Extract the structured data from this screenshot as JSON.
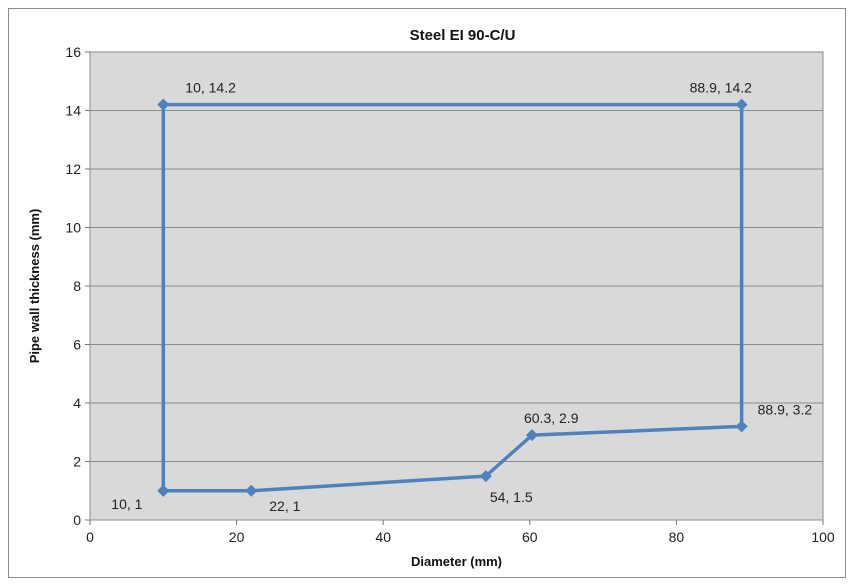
{
  "chart_data": {
    "type": "line",
    "title": "Steel EI 90-C/U",
    "xlabel": "Diameter (mm)",
    "ylabel": "Pipe wall thickness  (mm)",
    "xlim": [
      0,
      100
    ],
    "ylim": [
      0,
      16
    ],
    "x_ticks": [
      0,
      20,
      40,
      60,
      80,
      100
    ],
    "y_ticks": [
      0,
      2,
      4,
      6,
      8,
      10,
      12,
      14,
      16
    ],
    "grid": true,
    "legend": "none",
    "series": [
      {
        "color": "#4f81bd",
        "points": [
          {
            "x": 10,
            "y": 1,
            "label": "10, 1"
          },
          {
            "x": 22,
            "y": 1,
            "label": "22, 1"
          },
          {
            "x": 54,
            "y": 1.5,
            "label": "54, 1.5"
          },
          {
            "x": 60.3,
            "y": 2.9,
            "label": "60.3, 2.9"
          },
          {
            "x": 88.9,
            "y": 3.2,
            "label": "88.9, 3.2"
          },
          {
            "x": 88.9,
            "y": 14.2,
            "label": "88.9, 14.2"
          },
          {
            "x": 10,
            "y": 14.2,
            "label": "10, 14.2"
          },
          {
            "x": 10,
            "y": 1,
            "label": ""
          }
        ]
      }
    ],
    "plot_background": "#d9d9d9",
    "gridline_color": "#8a8a8a"
  }
}
